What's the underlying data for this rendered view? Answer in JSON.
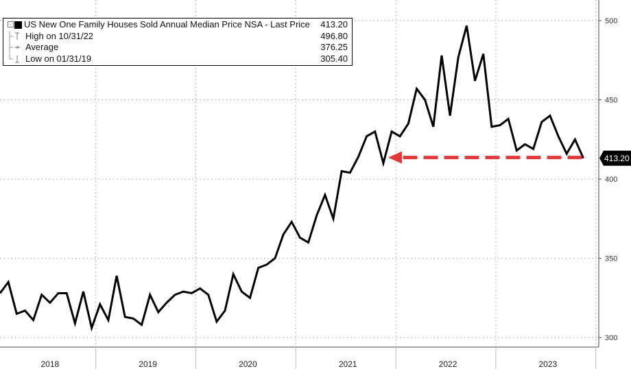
{
  "chart_data": {
    "type": "line",
    "title": "US New One Family Houses Sold Annual Median Price NSA",
    "series": [
      {
        "name": "US New One Family Houses Sold Annual Median Price NSA",
        "values": [
          328,
          335,
          315,
          317,
          311,
          327,
          322,
          328,
          328,
          309,
          329,
          306,
          321,
          311,
          339,
          313,
          312,
          308,
          327,
          316,
          322,
          327,
          329,
          328,
          331,
          327,
          310,
          317,
          340,
          329,
          325,
          344,
          346,
          350,
          365,
          373,
          363,
          360,
          377,
          390,
          375,
          405,
          404,
          414,
          427,
          430,
          410,
          430,
          427,
          435,
          457,
          450,
          433,
          478,
          440,
          477,
          496.8,
          462,
          479,
          433,
          434,
          438,
          418,
          422,
          419,
          436,
          440,
          427,
          416,
          425,
          413.2
        ]
      }
    ],
    "x_start": "2018-01",
    "x_step": "month",
    "x_tick_labels": [
      "2018",
      "2019",
      "2020",
      "2021",
      "2022",
      "2023"
    ],
    "y_ticks": [
      300,
      350,
      400,
      450,
      500
    ],
    "ylim": [
      294,
      513
    ],
    "grid": true,
    "last_value_label": "413.20",
    "annotation": "red dashed arrow pointing left at the last price level",
    "annotation_level": 413.2,
    "annotation_color": "#e23a3a",
    "line_color": "#000000",
    "last_label_bg": "#000000"
  },
  "legend": {
    "title": "US New One Family Houses Sold Annual Median Price NSA - Last Price",
    "title_value": "413.20",
    "high_label": "High on 10/31/22",
    "high_value": "496.80",
    "average_label": "Average",
    "average_value": "376.25",
    "low_label": "Low on 01/31/19",
    "low_value": "305.40"
  }
}
